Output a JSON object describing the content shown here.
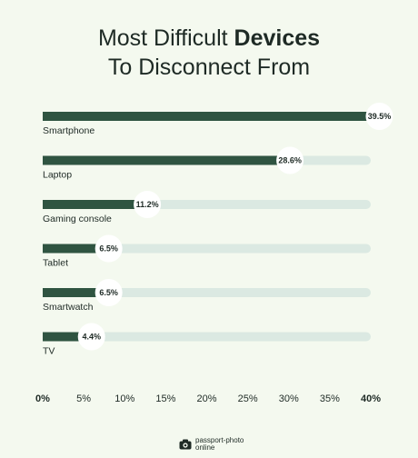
{
  "title": {
    "line1_prefix": "Most Difficult ",
    "line1_bold": "Devices",
    "line2": "To Disconnect From"
  },
  "colors": {
    "background": "#f4f9ef",
    "bar_fill": "#2f5441",
    "track": "#dbe9e2",
    "text": "#1e2a25"
  },
  "chart_data": {
    "type": "bar",
    "orientation": "horizontal",
    "title": "Most Difficult Devices To Disconnect From",
    "categories": [
      "Smartphone",
      "Laptop",
      "Gaming console",
      "Tablet",
      "Smartwatch",
      "TV"
    ],
    "values": [
      39.5,
      28.6,
      11.2,
      6.5,
      6.5,
      4.4
    ],
    "value_labels": [
      "39.5%",
      "28.6%",
      "11.2%",
      "6.5%",
      "6.5%",
      "4.4%"
    ],
    "xlim": [
      0,
      40
    ],
    "xticks": [
      "0%",
      "5%",
      "10%",
      "15%",
      "20%",
      "25%",
      "30%",
      "35%",
      "40%"
    ],
    "grid": false,
    "legend": "none"
  },
  "logo": {
    "line1": "passport-photo",
    "line2": "online",
    "icon": "camera-icon"
  }
}
